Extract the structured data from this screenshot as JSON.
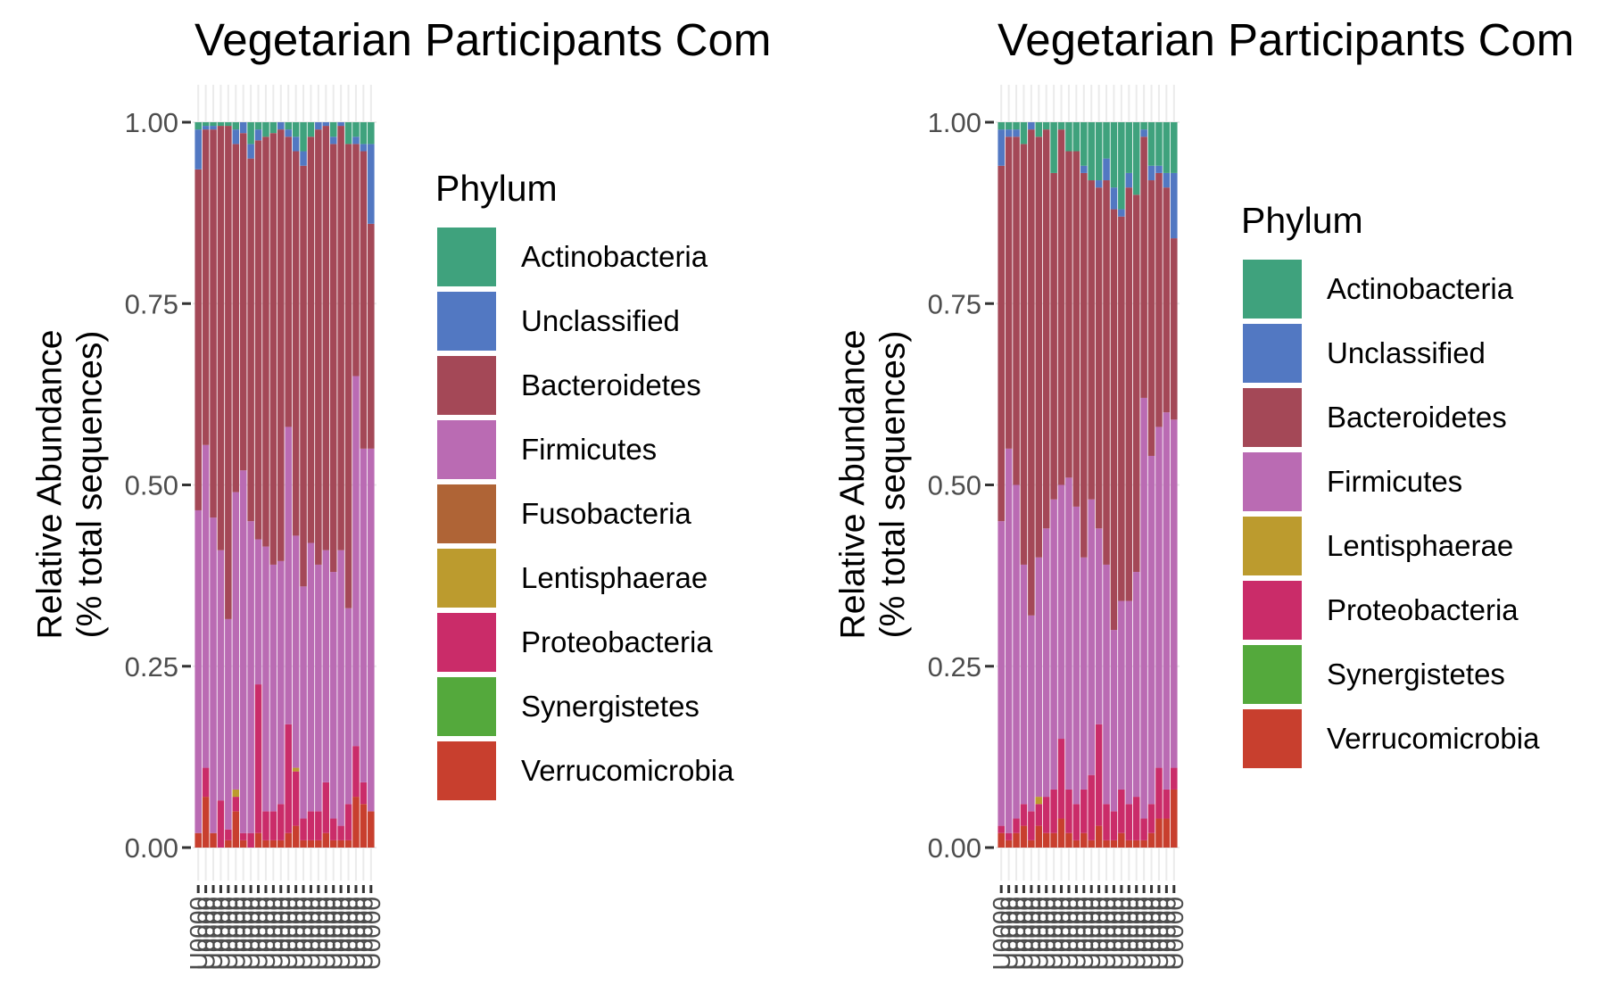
{
  "colors": {
    "Actinobacteria": "#3FA27D",
    "Unclassified": "#5278C2",
    "Bacteroidetes": "#A44857",
    "Firmicutes": "#BA6BB3",
    "Fusobacteria": "#AF6436",
    "Lentisphaerae": "#BC9B2E",
    "Proteobacteria": "#CA2C69",
    "Synergistetes": "#54A93C",
    "Verrucomicrobia": "#C83F2E",
    "grid": "#EBEBEB",
    "axis_text": "#4D4D4D"
  },
  "chart_data": [
    {
      "type": "bar",
      "stacked": true,
      "title": "Vegetarian Participants Com",
      "ylabel_line1": "Relative Abundance",
      "ylabel_line2": "(% total sequences)",
      "ylim": [
        0,
        1
      ],
      "yticks": [
        "0.00",
        "0.25",
        "0.50",
        "0.75",
        "1.00"
      ],
      "ytick_values": [
        0,
        0.25,
        0.5,
        0.75,
        1.0
      ],
      "x_tick_text": "U0000",
      "legend_title": "Phylum",
      "legend_position": "right",
      "legend": [
        "Actinobacteria",
        "Unclassified",
        "Bacteroidetes",
        "Firmicutes",
        "Fusobacteria",
        "Lentisphaerae",
        "Proteobacteria",
        "Synergistetes",
        "Verrucomicrobia"
      ],
      "stack_order": [
        "Verrucomicrobia",
        "Synergistetes",
        "Proteobacteria",
        "Lentisphaerae",
        "Fusobacteria",
        "Firmicutes",
        "Bacteroidetes",
        "Unclassified",
        "Actinobacteria"
      ],
      "samples": [
        {
          "Verrucomicrobia": 0.02,
          "Proteobacteria": 0.0,
          "Firmicutes": 0.445,
          "Bacteroidetes": 0.47,
          "Unclassified": 0.055,
          "Actinobacteria": 0.01
        },
        {
          "Verrucomicrobia": 0.07,
          "Proteobacteria": 0.04,
          "Firmicutes": 0.445,
          "Bacteroidetes": 0.435,
          "Unclassified": 0.005,
          "Actinobacteria": 0.005
        },
        {
          "Verrucomicrobia": 0.02,
          "Proteobacteria": 0.0,
          "Firmicutes": 0.435,
          "Bacteroidetes": 0.535,
          "Unclassified": 0.005,
          "Actinobacteria": 0.005
        },
        {
          "Verrucomicrobia": 0.0,
          "Proteobacteria": 0.065,
          "Firmicutes": 0.345,
          "Bacteroidetes": 0.585,
          "Unclassified": 0.0,
          "Actinobacteria": 0.005
        },
        {
          "Verrucomicrobia": 0.01,
          "Proteobacteria": 0.015,
          "Firmicutes": 0.29,
          "Bacteroidetes": 0.68,
          "Unclassified": 0.0,
          "Actinobacteria": 0.005
        },
        {
          "Verrucomicrobia": 0.05,
          "Lentisphaerae": 0.01,
          "Proteobacteria": 0.02,
          "Firmicutes": 0.41,
          "Bacteroidetes": 0.48,
          "Unclassified": 0.02,
          "Actinobacteria": 0.01
        },
        {
          "Verrucomicrobia": 0.01,
          "Proteobacteria": 0.01,
          "Firmicutes": 0.5,
          "Bacteroidetes": 0.465,
          "Unclassified": 0.015,
          "Actinobacteria": 0.0
        },
        {
          "Verrucomicrobia": 0.0,
          "Proteobacteria": 0.02,
          "Firmicutes": 0.43,
          "Bacteroidetes": 0.5,
          "Unclassified": 0.02,
          "Actinobacteria": 0.03
        },
        {
          "Verrucomicrobia": 0.02,
          "Proteobacteria": 0.205,
          "Firmicutes": 0.2,
          "Bacteroidetes": 0.55,
          "Unclassified": 0.015,
          "Actinobacteria": 0.01
        },
        {
          "Verrucomicrobia": 0.01,
          "Proteobacteria": 0.04,
          "Firmicutes": 0.365,
          "Bacteroidetes": 0.565,
          "Unclassified": 0.0,
          "Actinobacteria": 0.02
        },
        {
          "Verrucomicrobia": 0.01,
          "Proteobacteria": 0.04,
          "Firmicutes": 0.34,
          "Bacteroidetes": 0.595,
          "Unclassified": 0.0,
          "Actinobacteria": 0.015
        },
        {
          "Verrucomicrobia": 0.01,
          "Proteobacteria": 0.05,
          "Firmicutes": 0.335,
          "Bacteroidetes": 0.595,
          "Unclassified": 0.01,
          "Actinobacteria": 0.0
        },
        {
          "Verrucomicrobia": 0.02,
          "Proteobacteria": 0.15,
          "Firmicutes": 0.41,
          "Bacteroidetes": 0.4,
          "Unclassified": 0.01,
          "Actinobacteria": 0.01
        },
        {
          "Verrucomicrobia": 0.03,
          "Lentisphaerae": 0.005,
          "Proteobacteria": 0.075,
          "Firmicutes": 0.32,
          "Bacteroidetes": 0.53,
          "Unclassified": 0.02,
          "Actinobacteria": 0.02
        },
        {
          "Verrucomicrobia": 0.01,
          "Proteobacteria": 0.03,
          "Firmicutes": 0.32,
          "Bacteroidetes": 0.58,
          "Unclassified": 0.02,
          "Actinobacteria": 0.04
        },
        {
          "Verrucomicrobia": 0.01,
          "Proteobacteria": 0.04,
          "Firmicutes": 0.37,
          "Bacteroidetes": 0.56,
          "Unclassified": 0.0,
          "Actinobacteria": 0.02
        },
        {
          "Verrucomicrobia": 0.01,
          "Proteobacteria": 0.04,
          "Firmicutes": 0.34,
          "Bacteroidetes": 0.6,
          "Unclassified": 0.01,
          "Actinobacteria": 0.0
        },
        {
          "Verrucomicrobia": 0.02,
          "Proteobacteria": 0.07,
          "Firmicutes": 0.32,
          "Bacteroidetes": 0.585,
          "Unclassified": 0.005,
          "Actinobacteria": 0.0
        },
        {
          "Verrucomicrobia": 0.01,
          "Proteobacteria": 0.03,
          "Firmicutes": 0.34,
          "Bacteroidetes": 0.59,
          "Unclassified": 0.01,
          "Actinobacteria": 0.02
        },
        {
          "Verrucomicrobia": 0.01,
          "Proteobacteria": 0.02,
          "Firmicutes": 0.38,
          "Bacteroidetes": 0.585,
          "Unclassified": 0.005,
          "Actinobacteria": 0.0
        },
        {
          "Verrucomicrobia": 0.01,
          "Proteobacteria": 0.05,
          "Firmicutes": 0.27,
          "Bacteroidetes": 0.64,
          "Unclassified": 0.0,
          "Actinobacteria": 0.03
        },
        {
          "Verrucomicrobia": 0.07,
          "Proteobacteria": 0.07,
          "Firmicutes": 0.51,
          "Bacteroidetes": 0.32,
          "Unclassified": 0.01,
          "Actinobacteria": 0.02
        },
        {
          "Verrucomicrobia": 0.06,
          "Proteobacteria": 0.03,
          "Firmicutes": 0.46,
          "Bacteroidetes": 0.41,
          "Unclassified": 0.01,
          "Actinobacteria": 0.03
        },
        {
          "Verrucomicrobia": 0.05,
          "Proteobacteria": 0.0,
          "Firmicutes": 0.5,
          "Bacteroidetes": 0.31,
          "Unclassified": 0.11,
          "Actinobacteria": 0.03
        }
      ]
    },
    {
      "type": "bar",
      "stacked": true,
      "title": "Vegetarian Participants Com",
      "ylabel_line1": "Relative Abundance",
      "ylabel_line2": "(% total sequences)",
      "ylim": [
        0,
        1
      ],
      "yticks": [
        "0.00",
        "0.25",
        "0.50",
        "0.75",
        "1.00"
      ],
      "ytick_values": [
        0,
        0.25,
        0.5,
        0.75,
        1.0
      ],
      "x_tick_text": "U0000",
      "legend_title": "Phylum",
      "legend_position": "right",
      "legend": [
        "Actinobacteria",
        "Unclassified",
        "Bacteroidetes",
        "Firmicutes",
        "Lentisphaerae",
        "Proteobacteria",
        "Synergistetes",
        "Verrucomicrobia"
      ],
      "stack_order": [
        "Verrucomicrobia",
        "Synergistetes",
        "Proteobacteria",
        "Lentisphaerae",
        "Firmicutes",
        "Bacteroidetes",
        "Unclassified",
        "Actinobacteria"
      ],
      "samples": [
        {
          "Verrucomicrobia": 0.02,
          "Proteobacteria": 0.01,
          "Firmicutes": 0.42,
          "Bacteroidetes": 0.49,
          "Unclassified": 0.05,
          "Actinobacteria": 0.01
        },
        {
          "Verrucomicrobia": 0.01,
          "Proteobacteria": 0.01,
          "Firmicutes": 0.53,
          "Bacteroidetes": 0.43,
          "Unclassified": 0.01,
          "Actinobacteria": 0.01
        },
        {
          "Verrucomicrobia": 0.02,
          "Proteobacteria": 0.02,
          "Firmicutes": 0.46,
          "Bacteroidetes": 0.48,
          "Unclassified": 0.01,
          "Actinobacteria": 0.01
        },
        {
          "Verrucomicrobia": 0.03,
          "Proteobacteria": 0.03,
          "Firmicutes": 0.33,
          "Bacteroidetes": 0.58,
          "Unclassified": 0.0,
          "Actinobacteria": 0.03
        },
        {
          "Verrucomicrobia": 0.01,
          "Proteobacteria": 0.04,
          "Firmicutes": 0.27,
          "Bacteroidetes": 0.67,
          "Unclassified": 0.01,
          "Actinobacteria": 0.0
        },
        {
          "Verrucomicrobia": 0.03,
          "Lentisphaerae": 0.01,
          "Proteobacteria": 0.03,
          "Firmicutes": 0.33,
          "Bacteroidetes": 0.58,
          "Unclassified": 0.0,
          "Actinobacteria": 0.02
        },
        {
          "Verrucomicrobia": 0.02,
          "Proteobacteria": 0.05,
          "Firmicutes": 0.37,
          "Bacteroidetes": 0.55,
          "Unclassified": 0.0,
          "Actinobacteria": 0.01
        },
        {
          "Verrucomicrobia": 0.02,
          "Proteobacteria": 0.06,
          "Firmicutes": 0.4,
          "Bacteroidetes": 0.45,
          "Unclassified": 0.0,
          "Actinobacteria": 0.07
        },
        {
          "Verrucomicrobia": 0.04,
          "Proteobacteria": 0.11,
          "Firmicutes": 0.35,
          "Bacteroidetes": 0.49,
          "Unclassified": 0.0,
          "Actinobacteria": 0.01
        },
        {
          "Verrucomicrobia": 0.02,
          "Proteobacteria": 0.06,
          "Firmicutes": 0.43,
          "Bacteroidetes": 0.45,
          "Unclassified": 0.0,
          "Actinobacteria": 0.04
        },
        {
          "Verrucomicrobia": 0.01,
          "Proteobacteria": 0.05,
          "Firmicutes": 0.41,
          "Bacteroidetes": 0.49,
          "Unclassified": 0.0,
          "Actinobacteria": 0.04
        },
        {
          "Verrucomicrobia": 0.02,
          "Proteobacteria": 0.06,
          "Firmicutes": 0.32,
          "Bacteroidetes": 0.53,
          "Unclassified": 0.01,
          "Actinobacteria": 0.06
        },
        {
          "Verrucomicrobia": 0.01,
          "Proteobacteria": 0.09,
          "Firmicutes": 0.38,
          "Bacteroidetes": 0.44,
          "Unclassified": 0.0,
          "Actinobacteria": 0.08
        },
        {
          "Verrucomicrobia": 0.03,
          "Proteobacteria": 0.14,
          "Firmicutes": 0.27,
          "Bacteroidetes": 0.47,
          "Unclassified": 0.01,
          "Actinobacteria": 0.08
        },
        {
          "Verrucomicrobia": 0.01,
          "Proteobacteria": 0.05,
          "Firmicutes": 0.33,
          "Bacteroidetes": 0.53,
          "Unclassified": 0.03,
          "Actinobacteria": 0.05
        },
        {
          "Verrucomicrobia": 0.01,
          "Proteobacteria": 0.04,
          "Firmicutes": 0.25,
          "Bacteroidetes": 0.58,
          "Unclassified": 0.03,
          "Actinobacteria": 0.09
        },
        {
          "Verrucomicrobia": 0.02,
          "Proteobacteria": 0.06,
          "Firmicutes": 0.26,
          "Bacteroidetes": 0.53,
          "Unclassified": 0.01,
          "Actinobacteria": 0.12
        },
        {
          "Verrucomicrobia": 0.01,
          "Proteobacteria": 0.05,
          "Firmicutes": 0.28,
          "Bacteroidetes": 0.57,
          "Unclassified": 0.02,
          "Actinobacteria": 0.07
        },
        {
          "Verrucomicrobia": 0.01,
          "Proteobacteria": 0.06,
          "Firmicutes": 0.31,
          "Bacteroidetes": 0.52,
          "Unclassified": 0.0,
          "Actinobacteria": 0.1
        },
        {
          "Verrucomicrobia": 0.01,
          "Proteobacteria": 0.03,
          "Firmicutes": 0.58,
          "Bacteroidetes": 0.36,
          "Unclassified": 0.01,
          "Actinobacteria": 0.01
        },
        {
          "Verrucomicrobia": 0.02,
          "Proteobacteria": 0.04,
          "Firmicutes": 0.48,
          "Bacteroidetes": 0.38,
          "Unclassified": 0.02,
          "Actinobacteria": 0.06
        },
        {
          "Verrucomicrobia": 0.04,
          "Proteobacteria": 0.07,
          "Firmicutes": 0.47,
          "Bacteroidetes": 0.35,
          "Unclassified": 0.01,
          "Actinobacteria": 0.06
        },
        {
          "Verrucomicrobia": 0.04,
          "Proteobacteria": 0.04,
          "Firmicutes": 0.52,
          "Bacteroidetes": 0.31,
          "Unclassified": 0.02,
          "Actinobacteria": 0.07
        },
        {
          "Verrucomicrobia": 0.08,
          "Proteobacteria": 0.03,
          "Firmicutes": 0.48,
          "Bacteroidetes": 0.25,
          "Unclassified": 0.09,
          "Actinobacteria": 0.07
        }
      ]
    }
  ]
}
